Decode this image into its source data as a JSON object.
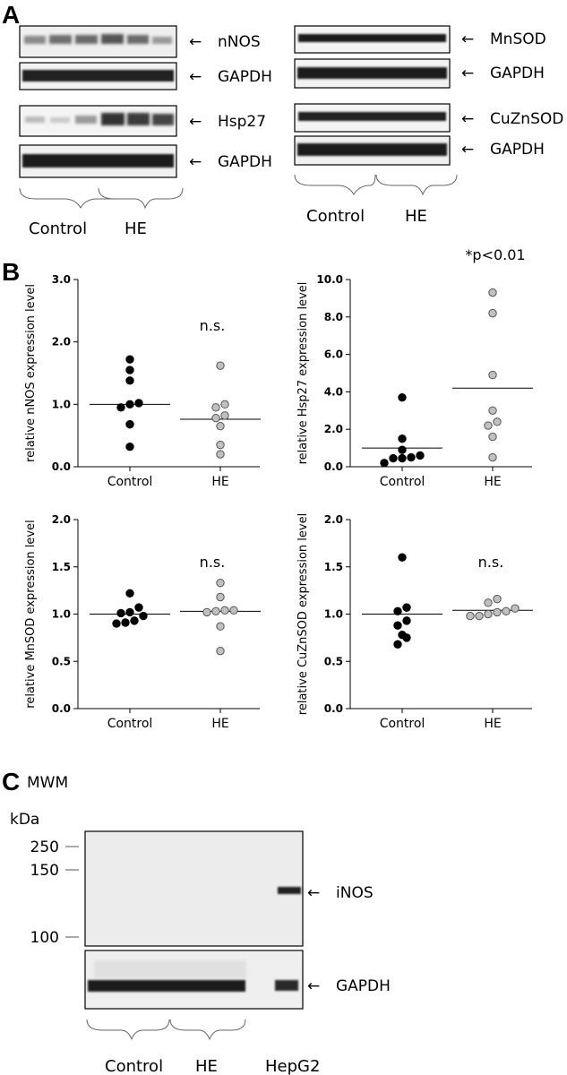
{
  "panels": [
    {
      "letter": "A"
    },
    {
      "letter": "B"
    },
    {
      "letter": "C"
    }
  ],
  "panel_a": {
    "left": [
      "nNOS",
      "GAPDH",
      "Hsp27",
      "GAPDH"
    ],
    "right": [
      "MnSOD",
      "GAPDH",
      "CuZnSOD",
      "GAPDH"
    ],
    "groups": [
      "Control",
      "HE",
      "Control",
      "HE"
    ]
  },
  "panel_c": {
    "mwm": "MWM",
    "kda": "kDa",
    "markers": [
      "250",
      "150",
      "100"
    ],
    "labels": [
      "iNOS",
      "GAPDH"
    ],
    "groups": [
      "Control",
      "HE",
      "HepG2"
    ]
  },
  "colors": {
    "control_dot": "#000000",
    "he_dot": "#c0c0c0",
    "he_dot_stroke": "#555555"
  },
  "chart_data": [
    {
      "type": "scatter",
      "ylabel": "relative nNOS expression level",
      "categories": [
        "Control",
        "HE"
      ],
      "ylim": [
        0,
        3.0
      ],
      "yticks": [
        "0.0",
        "1.0",
        "2.0",
        "3.0"
      ],
      "annotation": "n.s.",
      "series": [
        {
          "values": [
            1.72,
            1.55,
            1.38,
            1.02,
            1.0,
            0.95,
            0.68,
            0.32
          ],
          "mean": 1.0
        },
        {
          "values": [
            1.62,
            1.0,
            0.95,
            0.82,
            0.78,
            0.65,
            0.35,
            0.2
          ],
          "mean": 0.76
        }
      ]
    },
    {
      "type": "scatter",
      "ylabel": "relative Hsp27 expression level",
      "categories": [
        "Control",
        "HE"
      ],
      "ylim": [
        0,
        10.0
      ],
      "yticks": [
        "0.0",
        "2.0",
        "4.0",
        "6.0",
        "8.0",
        "10.0"
      ],
      "annotation": "*p<0.01",
      "series": [
        {
          "values": [
            3.7,
            1.5,
            0.9,
            0.6,
            0.45,
            0.45,
            0.5,
            0.2
          ],
          "mean": 1.0
        },
        {
          "values": [
            9.3,
            8.2,
            4.9,
            3.0,
            2.4,
            2.2,
            1.6,
            0.5
          ],
          "mean": 4.2
        }
      ]
    },
    {
      "type": "scatter",
      "ylabel": "relative MnSOD expression level",
      "categories": [
        "Control",
        "HE"
      ],
      "ylim": [
        0,
        2.0
      ],
      "yticks": [
        "0.0",
        "0.5",
        "1.0",
        "1.5",
        "2.0"
      ],
      "annotation": "n.s.",
      "series": [
        {
          "values": [
            1.22,
            1.07,
            1.02,
            1.01,
            0.98,
            0.93,
            0.91,
            0.9
          ],
          "mean": 1.0
        },
        {
          "values": [
            1.33,
            1.18,
            1.04,
            1.04,
            1.03,
            1.02,
            0.87,
            0.61
          ],
          "mean": 1.03
        }
      ]
    },
    {
      "type": "scatter",
      "ylabel": "relative CuZnSOD expression level",
      "categories": [
        "Control",
        "HE"
      ],
      "ylim": [
        0,
        2.0
      ],
      "yticks": [
        "0.0",
        "0.5",
        "1.0",
        "1.5",
        "2.0"
      ],
      "annotation": "n.s.",
      "series": [
        {
          "values": [
            1.6,
            1.07,
            1.03,
            0.93,
            0.88,
            0.78,
            0.75,
            0.68
          ],
          "mean": 1.0
        },
        {
          "values": [
            1.16,
            1.12,
            1.06,
            1.03,
            1.02,
            1.0,
            0.98,
            0.98
          ],
          "mean": 1.04
        }
      ]
    }
  ]
}
